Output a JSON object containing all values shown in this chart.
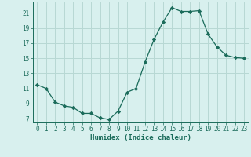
{
  "x": [
    0,
    1,
    2,
    3,
    4,
    5,
    6,
    7,
    8,
    9,
    10,
    11,
    12,
    13,
    14,
    15,
    16,
    17,
    18,
    19,
    20,
    21,
    22,
    23
  ],
  "y": [
    11.5,
    11.0,
    9.2,
    8.7,
    8.5,
    7.7,
    7.7,
    7.1,
    6.9,
    8.0,
    10.5,
    11.0,
    14.5,
    17.5,
    19.8,
    21.7,
    21.2,
    21.2,
    21.3,
    18.2,
    16.5,
    15.4,
    15.1,
    15.0
  ],
  "xlabel": "Humidex (Indice chaleur)",
  "xlim": [
    -0.5,
    23.5
  ],
  "ylim": [
    6.5,
    22.5
  ],
  "yticks": [
    7,
    9,
    11,
    13,
    15,
    17,
    19,
    21
  ],
  "xticks": [
    0,
    1,
    2,
    3,
    4,
    5,
    6,
    7,
    8,
    9,
    10,
    11,
    12,
    13,
    14,
    15,
    16,
    17,
    18,
    19,
    20,
    21,
    22,
    23
  ],
  "line_color": "#1a6b5a",
  "marker": "D",
  "marker_size": 2.2,
  "bg_color": "#d8f0ee",
  "grid_color": "#b8d8d4",
  "tick_fontsize": 5.5,
  "xlabel_fontsize": 6.5
}
